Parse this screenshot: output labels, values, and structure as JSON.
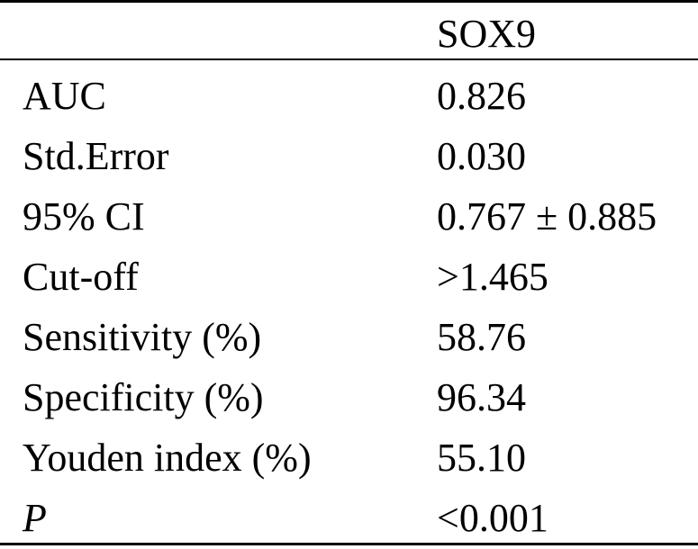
{
  "table": {
    "column_header": "SOX9",
    "rows": [
      {
        "label": "AUC",
        "value": "0.826"
      },
      {
        "label": "Std.Error",
        "value": "0.030"
      },
      {
        "label": "95% CI",
        "value": "0.767 ± 0.885"
      },
      {
        "label": "Cut-off",
        "value": ">1.465"
      },
      {
        "label": "Sensitivity (%)",
        "value": "58.76"
      },
      {
        "label": "Specificity (%)",
        "value": "96.34"
      },
      {
        "label": "Youden index (%)",
        "value": "55.10"
      },
      {
        "label": "P",
        "value": "<0.001"
      }
    ]
  },
  "colors": {
    "text": "#000000",
    "rules": "#000000",
    "background": "#ffffff"
  }
}
